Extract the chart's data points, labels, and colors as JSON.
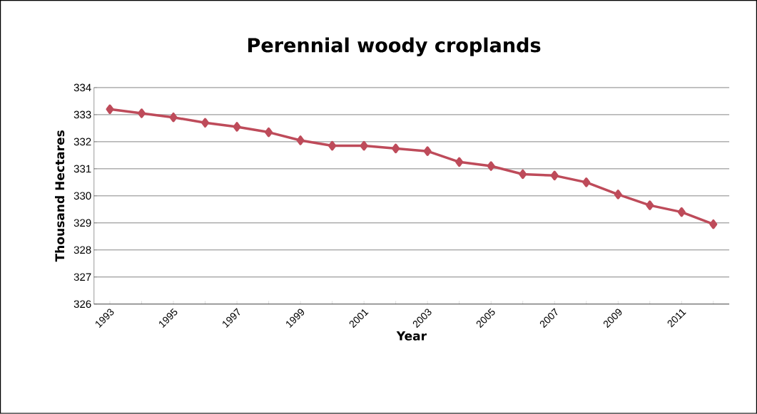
{
  "chart_data": {
    "type": "line",
    "title": "Perennial woody croplands",
    "xlabel": "Year",
    "ylabel": "Thousand Hectares",
    "categories": [
      "1993",
      null,
      "1995",
      null,
      "1997",
      null,
      "1999",
      null,
      "2001",
      null,
      "2003",
      null,
      "2005",
      null,
      "2007",
      null,
      "2009",
      null,
      "2011",
      null
    ],
    "series": [
      {
        "color": "#be4b5a",
        "values": [
          333.2,
          333.05,
          332.9,
          332.7,
          332.55,
          332.35,
          332.05,
          331.85,
          331.85,
          331.75,
          331.65,
          331.25,
          331.1,
          330.8,
          330.75,
          330.5,
          330.05,
          329.65,
          329.4,
          328.95
        ]
      }
    ],
    "ylim": [
      326,
      334
    ],
    "yticks": [
      326,
      327,
      328,
      329,
      330,
      331,
      332,
      333,
      334
    ],
    "grid": "y",
    "marker": "diamond",
    "line_style": "solid"
  }
}
